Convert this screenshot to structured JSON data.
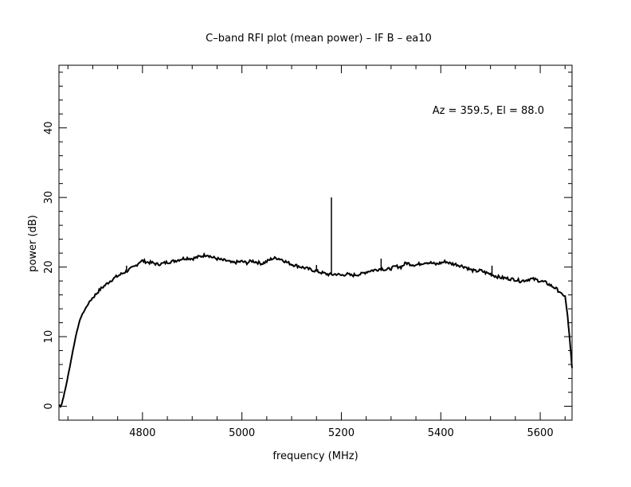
{
  "chart_data": {
    "type": "line",
    "title": "C–band RFI plot (mean power) – IF B – ea10",
    "xlabel": "frequency (MHz)",
    "ylabel": "power (dB)",
    "annotation": "Az = 359.5, El = 88.0",
    "xlim": [
      4632,
      5664
    ],
    "ylim": [
      -2,
      49
    ],
    "x_ticks": [
      4800,
      5000,
      5200,
      5400,
      5600
    ],
    "y_ticks": [
      0,
      10,
      20,
      30,
      40
    ],
    "x_tick_labels": [
      "4800",
      "5000",
      "5200",
      "5400",
      "5600"
    ],
    "y_tick_labels": [
      "0",
      "10",
      "20",
      "30",
      "40"
    ],
    "x_minor_step": 50,
    "y_minor_step": 2,
    "grid": false,
    "line_color": "#000000",
    "series": [
      {
        "x": [
          4632,
          4635,
          4638,
          4645,
          4652,
          4660,
          4668,
          4676,
          4685,
          4695,
          4705,
          4715,
          4725,
          4735,
          4745,
          4755,
          4765,
          4775,
          4785,
          4795,
          4800,
          4810,
          4820,
          4830,
          4840,
          4850,
          4860,
          4870,
          4880,
          4890,
          4900,
          4910,
          4920,
          4930,
          4940,
          4950,
          4960,
          4970,
          4980,
          4990,
          5000,
          5010,
          5020,
          5030,
          5040,
          5050,
          5060,
          5070,
          5080,
          5090,
          5100,
          5110,
          5120,
          5130,
          5140,
          5150,
          5160,
          5170,
          5180,
          5190,
          5200,
          5210,
          5220,
          5230,
          5240,
          5250,
          5260,
          5270,
          5280,
          5290,
          5300,
          5310,
          5320,
          5330,
          5340,
          5350,
          5360,
          5370,
          5380,
          5390,
          5400,
          5410,
          5420,
          5430,
          5440,
          5450,
          5460,
          5470,
          5480,
          5490,
          5500,
          5510,
          5520,
          5530,
          5540,
          5550,
          5560,
          5570,
          5580,
          5590,
          5600,
          5610,
          5620,
          5630,
          5640,
          5645,
          5650,
          5655,
          5660,
          5664
        ],
        "y": [
          0.2,
          0.0,
          0.4,
          2.5,
          5.0,
          8.0,
          10.8,
          12.8,
          14.0,
          15.2,
          16.0,
          16.8,
          17.4,
          18.0,
          18.5,
          18.9,
          19.3,
          19.7,
          20.1,
          20.8,
          20.9,
          20.7,
          20.6,
          20.4,
          20.5,
          20.7,
          20.8,
          21.0,
          21.2,
          21.3,
          21.2,
          21.4,
          21.6,
          21.8,
          21.4,
          21.2,
          21.0,
          20.9,
          20.6,
          20.7,
          20.8,
          20.6,
          20.9,
          20.7,
          20.5,
          20.8,
          21.2,
          21.3,
          21.1,
          20.7,
          20.4,
          20.2,
          20.0,
          19.8,
          19.6,
          19.4,
          19.2,
          19.0,
          18.9,
          19.0,
          18.8,
          19.0,
          18.8,
          18.9,
          19.0,
          19.3,
          19.5,
          19.6,
          19.8,
          19.6,
          19.8,
          20.1,
          20.0,
          20.6,
          20.4,
          20.3,
          20.5,
          20.7,
          20.6,
          20.4,
          20.6,
          20.8,
          20.5,
          20.4,
          20.2,
          20.0,
          19.6,
          19.4,
          19.5,
          19.2,
          19.0,
          18.7,
          18.5,
          18.4,
          18.3,
          18.2,
          18.0,
          18.1,
          18.3,
          18.2,
          18.0,
          17.8,
          17.4,
          17.0,
          16.4,
          16.0,
          15.8,
          13.0,
          9.0,
          5.5
        ]
      }
    ],
    "spikes": [
      {
        "x": 4768,
        "y": 20.2
      },
      {
        "x": 5150,
        "y": 20.3
      },
      {
        "x": 5180,
        "y": 30.0
      },
      {
        "x": 5280,
        "y": 21.2
      },
      {
        "x": 5503,
        "y": 20.2
      }
    ]
  }
}
